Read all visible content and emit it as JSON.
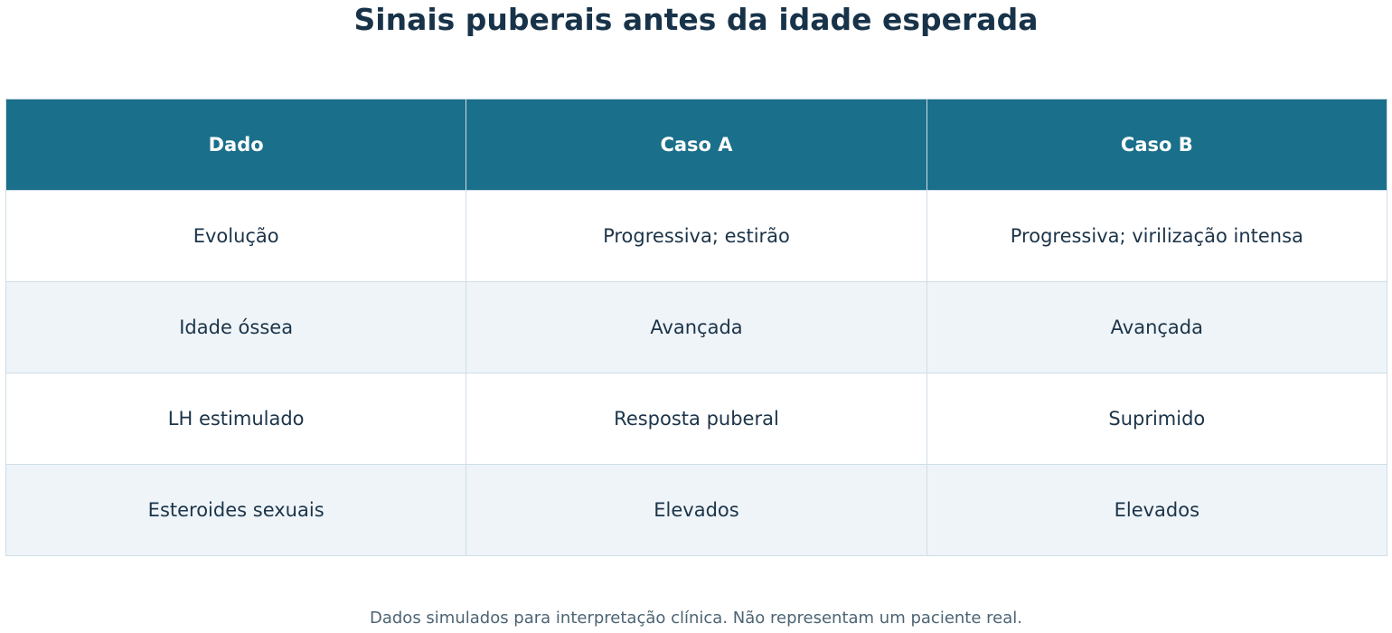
{
  "title": "Sinais puberais antes da idade esperada",
  "footnote": "Dados simulados para interpretação clínica. Não representam um paciente real.",
  "colors": {
    "header_bg": "#1a6f8a",
    "header_text": "#ffffff",
    "body_text": "#1c3449",
    "row_alt_bg": "#eef4f8",
    "grid": "#cfdde6"
  },
  "chart_data": {
    "type": "table",
    "title": "Sinais puberais antes da idade esperada",
    "columns": [
      "Dado",
      "Caso A",
      "Caso B"
    ],
    "rows": [
      [
        "Evolução",
        "Progressiva; estirão",
        "Progressiva; virilização intensa"
      ],
      [
        "Idade óssea",
        "Avançada",
        "Avançada"
      ],
      [
        "LH estimulado",
        "Resposta puberal",
        "Suprimido"
      ],
      [
        "Esteroides sexuais",
        "Elevados",
        "Elevados"
      ]
    ]
  }
}
